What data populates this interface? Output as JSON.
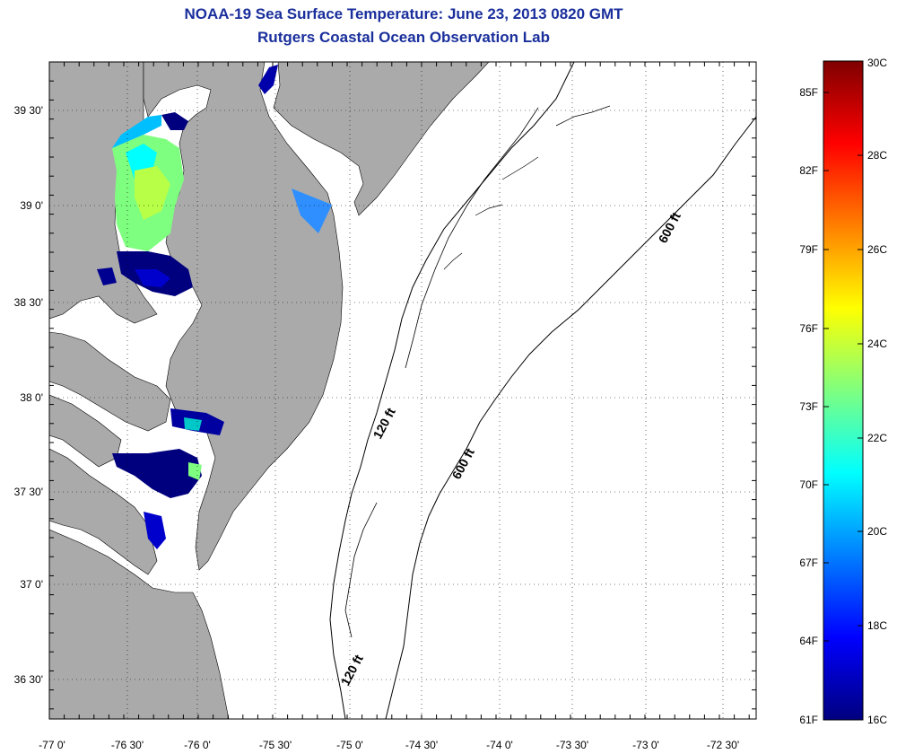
{
  "header": {
    "title": "NOAA-19 Sea Surface Temperature:  June 23, 2013 0820 GMT",
    "subtitle": "Rutgers Coastal Ocean Observation Lab"
  },
  "map": {
    "lon_labels": [
      "-77 0'",
      "-76 30'",
      "-76 0'",
      "-75 30'",
      "-75 0'",
      "-74 30'",
      "-74 0'",
      "-73 30'",
      "-73 0'",
      "-72 30'"
    ],
    "lat_labels": [
      "39 30'",
      "39 0'",
      "38 30'",
      "38 0'",
      "37 30'",
      "37 0'",
      "36 30'"
    ],
    "depth_labels": [
      "600 ft",
      "120 ft",
      "600 ft",
      "120 ft"
    ],
    "colors": {
      "land": "#aaaaaa",
      "water_nodata": "#ffffff",
      "grid": "#000000",
      "title": "#1a2f9c"
    }
  },
  "colorbar": {
    "fahrenheit_labels": [
      "85F",
      "82F",
      "79F",
      "76F",
      "73F",
      "70F",
      "67F",
      "64F",
      "61F"
    ],
    "celsius_labels": [
      "30C",
      "28C",
      "26C",
      "24C",
      "22C",
      "20C",
      "18C",
      "16C"
    ],
    "min_c": 16,
    "max_c": 30,
    "colormap": [
      "#00007f",
      "#0000ff",
      "#007fff",
      "#00ffff",
      "#7fff7f",
      "#ffff00",
      "#ff7f00",
      "#ff0000",
      "#7f0000"
    ]
  }
}
